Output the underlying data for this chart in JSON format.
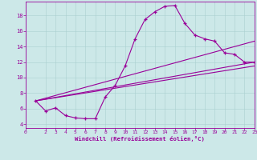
{
  "title": "",
  "xlabel": "Windchill (Refroidissement éolien,°C)",
  "bg_color": "#cce8e8",
  "line_color": "#990099",
  "xlim": [
    0,
    23
  ],
  "ylim": [
    3.5,
    19.8
  ],
  "xticks": [
    0,
    2,
    3,
    4,
    5,
    6,
    7,
    8,
    9,
    10,
    11,
    12,
    13,
    14,
    15,
    16,
    17,
    18,
    19,
    20,
    21,
    22,
    23
  ],
  "yticks": [
    4,
    6,
    8,
    10,
    12,
    14,
    16,
    18
  ],
  "curve1_x": [
    1,
    2,
    3,
    4,
    5,
    6,
    7,
    8,
    9,
    10,
    11,
    12,
    13,
    14,
    15,
    16,
    17,
    18,
    19,
    20,
    21,
    22,
    23
  ],
  "curve1_y": [
    7.0,
    5.7,
    6.1,
    5.1,
    4.8,
    4.7,
    4.7,
    7.5,
    9.0,
    11.5,
    15.0,
    17.5,
    18.5,
    19.2,
    19.3,
    17.0,
    15.5,
    15.0,
    14.7,
    13.2,
    13.0,
    12.0,
    12.0
  ],
  "line2_x": [
    1,
    23
  ],
  "line2_y": [
    7.0,
    12.0
  ],
  "line3_x": [
    1,
    23
  ],
  "line3_y": [
    7.0,
    11.5
  ],
  "line4_x": [
    1,
    23
  ],
  "line4_y": [
    7.0,
    14.7
  ]
}
